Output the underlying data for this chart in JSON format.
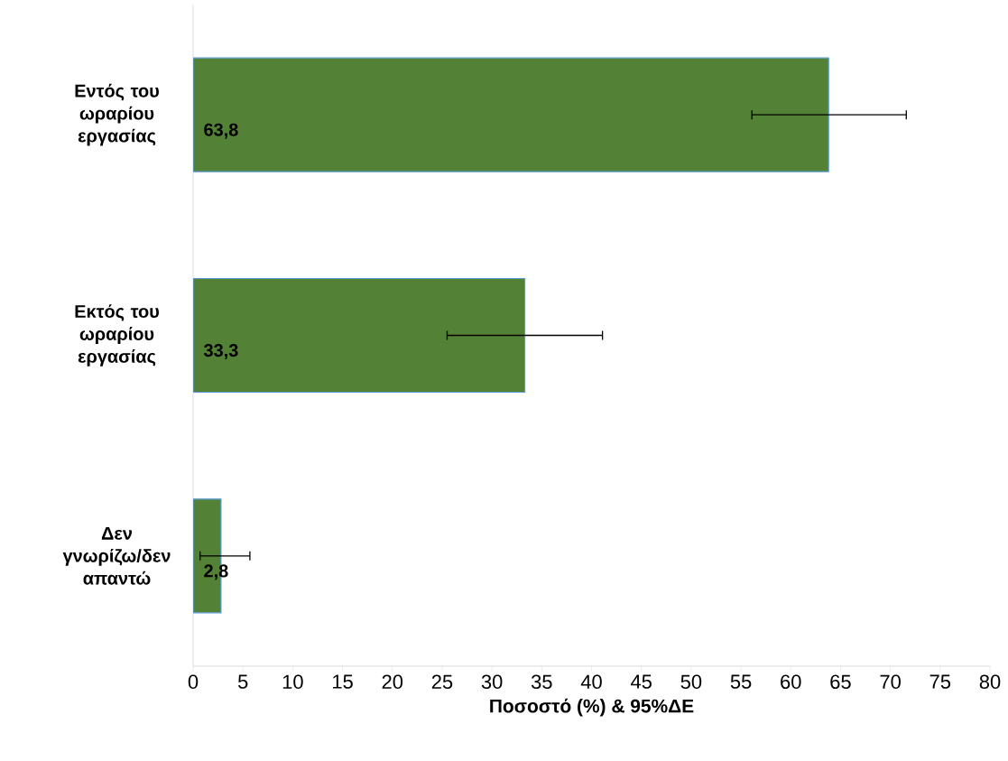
{
  "chart_data": {
    "type": "bar",
    "orientation": "horizontal",
    "xlabel": "Ποσοστό (%) & 95%ΔΕ",
    "categories": [
      "Εντός του ωραρίου εργασίας",
      "Εκτός του ωραρίου εργασίας",
      "Δεν γνωρίζω/δεν απαντώ"
    ],
    "values": [
      63.8,
      33.3,
      2.8
    ],
    "value_labels": [
      "63,8",
      "33,3",
      "2,8"
    ],
    "errors": [
      [
        56.1,
        71.6
      ],
      [
        25.5,
        41.1
      ],
      [
        0.7,
        5.7
      ]
    ],
    "color": "#538135",
    "xlim": [
      0,
      80
    ],
    "xticks": [
      0,
      5,
      10,
      15,
      20,
      25,
      30,
      35,
      40,
      45,
      50,
      55,
      60,
      65,
      70,
      75,
      80
    ],
    "marker": "none"
  }
}
